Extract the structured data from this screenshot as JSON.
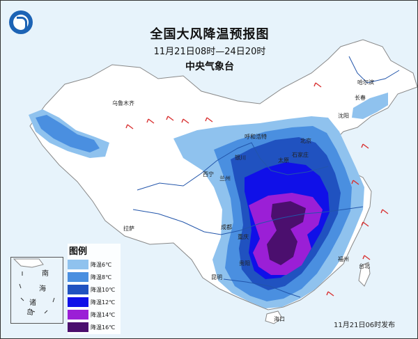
{
  "title": {
    "main": "全国大风降温预报图",
    "period": "11月21日08时—24日20时",
    "issuer": "中央气象台"
  },
  "cities": {
    "urumqi": "乌鲁木齐",
    "harbin": "哈尔滨",
    "changchun": "长春",
    "shenyang": "沈阳",
    "hohhot": "呼和浩特",
    "beijing": "北京",
    "yinchuan": "银川",
    "taiyuan": "太原",
    "shijiazhuang": "石家庄",
    "xining": "西宁",
    "lanzhou": "兰州",
    "chengdu": "成都",
    "chongqing": "重庆",
    "lhasa": "拉萨",
    "guiyang": "贵阳",
    "kunming": "昆明",
    "taibei": "台北",
    "haikou": "海口",
    "fuzhou": "福州"
  },
  "legend": {
    "title": "图例",
    "items": [
      {
        "label": "降温6℃",
        "color": "#8fc2ee"
      },
      {
        "label": "降温8℃",
        "color": "#4a8fe0"
      },
      {
        "label": "降温10℃",
        "color": "#2052c0"
      },
      {
        "label": "降温12℃",
        "color": "#1010e8"
      },
      {
        "label": "降温14℃",
        "color": "#9b1fd6"
      },
      {
        "label": "降温16℃",
        "color": "#4b0f6e"
      }
    ]
  },
  "inset": {
    "label_1": "南",
    "label_2": "海",
    "label_3": "诸",
    "label_4": "岛"
  },
  "issue_time": "11月21日06时发布",
  "colors": {
    "land": "#ffffff",
    "sea": "#e7f3fb",
    "boundary": "#888888",
    "river": "#2255aa",
    "wind_barb": "#d83030"
  },
  "icons": {
    "logo": "cma-logo",
    "wind": "wind-barb-icon"
  }
}
